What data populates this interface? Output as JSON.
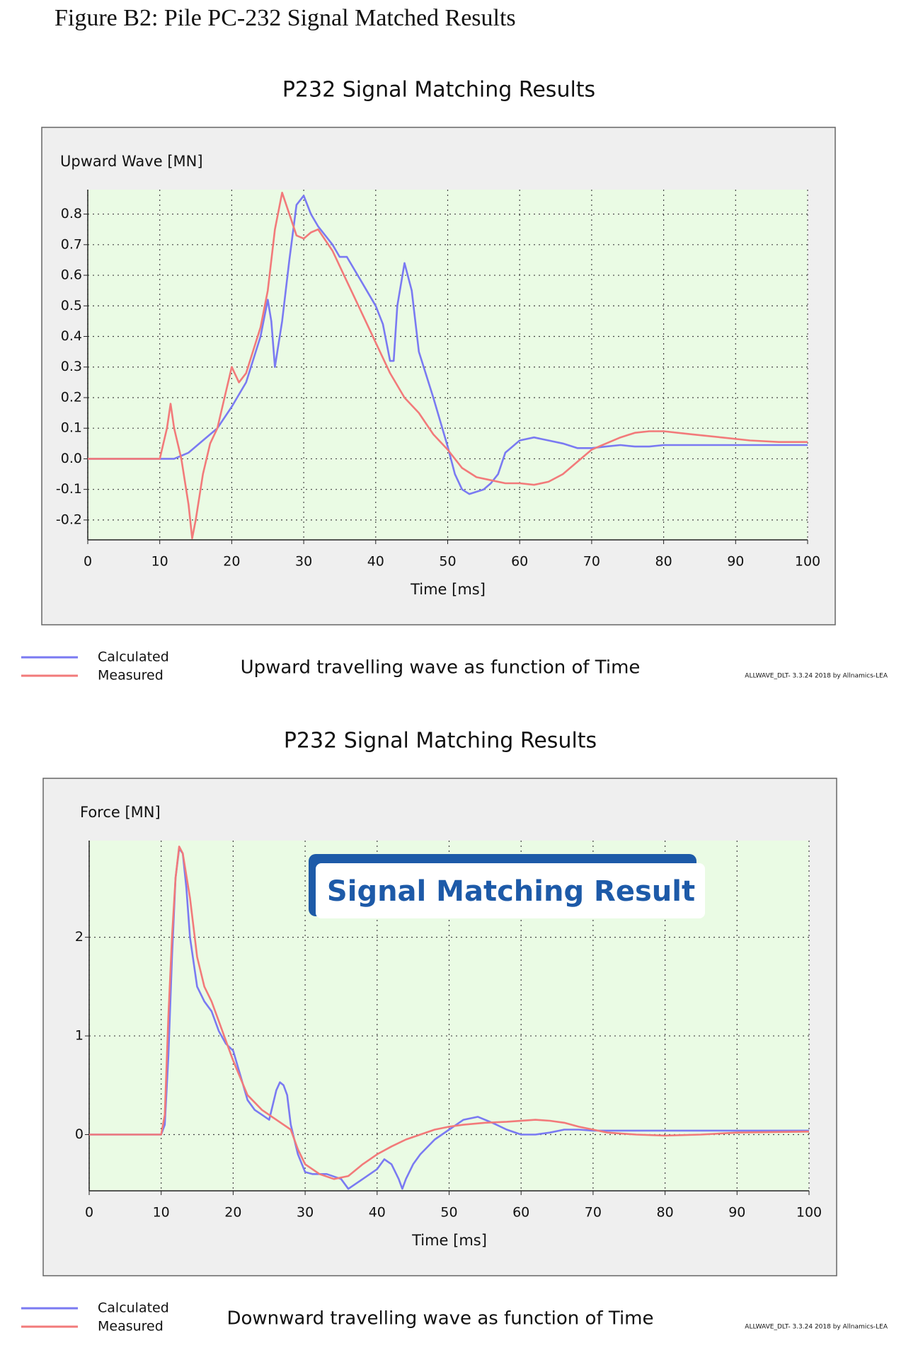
{
  "caption": "Figure B2: Pile PC-232 Signal Matched Results",
  "chart_data": [
    {
      "type": "line",
      "title": "P232 Signal Matching Results",
      "y_label": "Upward Wave [MN]",
      "x_label": "Time [ms]",
      "subtitle": "Upward travelling wave as function of Time",
      "footnote": "ALLWAVE_DLT- 3.3.24  2018 by Allnamics-LEA",
      "xlim": [
        0,
        100
      ],
      "ylim": [
        -0.265,
        0.88
      ],
      "grid": true,
      "xticks": [
        0,
        10,
        20,
        30,
        40,
        50,
        60,
        70,
        80,
        90,
        100
      ],
      "yticks": [
        -0.2,
        -0.1,
        {
          "value": 0,
          "label": "0.0"
        },
        0.1,
        0.2,
        0.3,
        0.4,
        0.5,
        0.6,
        0.7,
        0.8
      ],
      "series": [
        {
          "name": "Calculated",
          "color": "#7a7af2",
          "x": [
            0,
            10,
            12,
            14,
            16,
            18,
            20,
            22,
            24,
            25,
            25.5,
            26,
            27,
            28,
            29,
            30,
            31,
            32,
            34,
            35,
            36,
            38,
            40,
            41,
            42,
            42.5,
            43,
            44,
            45,
            46,
            48,
            50,
            51,
            52,
            53,
            55,
            56,
            57,
            58,
            60,
            62,
            64,
            66,
            68,
            70,
            72,
            74,
            76,
            78,
            80,
            90,
            100
          ],
          "values": [
            0,
            0,
            0,
            0.02,
            0.06,
            0.1,
            0.17,
            0.25,
            0.4,
            0.52,
            0.45,
            0.3,
            0.45,
            0.65,
            0.83,
            0.86,
            0.8,
            0.76,
            0.7,
            0.66,
            0.66,
            0.58,
            0.5,
            0.44,
            0.32,
            0.32,
            0.5,
            0.64,
            0.55,
            0.35,
            0.2,
            0.04,
            -0.05,
            -0.1,
            -0.115,
            -0.1,
            -0.08,
            -0.05,
            0.02,
            0.06,
            0.07,
            0.06,
            0.05,
            0.035,
            0.035,
            0.04,
            0.045,
            0.04,
            0.04,
            0.045,
            0.045,
            0.045
          ]
        },
        {
          "name": "Measured",
          "color": "#f27a7a",
          "x": [
            0,
            10,
            10.5,
            11,
            11.5,
            12,
            13,
            14,
            14.5,
            15,
            16,
            17,
            18,
            19,
            20,
            21,
            22,
            24,
            25,
            26,
            27,
            28,
            29,
            30,
            31,
            32,
            34,
            36,
            38,
            40,
            42,
            44,
            46,
            48,
            50,
            52,
            54,
            56,
            58,
            60,
            62,
            64,
            66,
            68,
            70,
            72,
            74,
            76,
            78,
            80,
            84,
            88,
            92,
            96,
            100
          ],
          "values": [
            0,
            0,
            0.05,
            0.1,
            0.18,
            0.1,
            0,
            -0.15,
            -0.26,
            -0.2,
            -0.05,
            0.05,
            0.1,
            0.2,
            0.3,
            0.25,
            0.28,
            0.43,
            0.55,
            0.75,
            0.87,
            0.8,
            0.73,
            0.72,
            0.74,
            0.75,
            0.68,
            0.58,
            0.48,
            0.38,
            0.28,
            0.2,
            0.15,
            0.08,
            0.03,
            -0.03,
            -0.06,
            -0.07,
            -0.08,
            -0.08,
            -0.085,
            -0.075,
            -0.05,
            -0.01,
            0.03,
            0.05,
            0.07,
            0.085,
            0.09,
            0.09,
            0.08,
            0.07,
            0.06,
            0.055,
            0.055
          ]
        }
      ]
    },
    {
      "type": "line",
      "title": "P232 Signal Matching Results",
      "y_label": "Force [MN]",
      "x_label": "Time [ms]",
      "subtitle": "Downward travelling wave as function of Time",
      "footnote": "ALLWAVE_DLT- 3.3.24  2018 by Allnamics-LEA",
      "annotation": "Signal Matching Result",
      "xlim": [
        0,
        100
      ],
      "ylim": [
        -0.57,
        2.98
      ],
      "grid": true,
      "xticks": [
        0,
        10,
        20,
        30,
        40,
        50,
        60,
        70,
        80,
        90,
        100
      ],
      "yticks": [
        0,
        1,
        2
      ],
      "series": [
        {
          "name": "Calculated",
          "color": "#7a7af2",
          "x": [
            0,
            10,
            10.5,
            11,
            11.5,
            12,
            12.5,
            13,
            13.5,
            14,
            15,
            16,
            17,
            18,
            19,
            20,
            21,
            22,
            23,
            24,
            25,
            26,
            26.5,
            27,
            27.5,
            28,
            29,
            30,
            31,
            33,
            35,
            36,
            38,
            40,
            41,
            42,
            43,
            43.5,
            44,
            45,
            46,
            48,
            50,
            52,
            54,
            56,
            58,
            60,
            62,
            64,
            66,
            68,
            70,
            75,
            80,
            90,
            100
          ],
          "values": [
            0,
            0,
            0.1,
            0.8,
            1.8,
            2.6,
            2.9,
            2.85,
            2.5,
            2.0,
            1.5,
            1.35,
            1.25,
            1.05,
            0.92,
            0.85,
            0.6,
            0.35,
            0.25,
            0.2,
            0.15,
            0.45,
            0.53,
            0.5,
            0.4,
            0.1,
            -0.2,
            -0.38,
            -0.4,
            -0.4,
            -0.45,
            -0.55,
            -0.45,
            -0.35,
            -0.25,
            -0.3,
            -0.45,
            -0.55,
            -0.45,
            -0.3,
            -0.2,
            -0.05,
            0.05,
            0.15,
            0.18,
            0.12,
            0.05,
            0,
            0,
            0.02,
            0.05,
            0.05,
            0.04,
            0.04,
            0.04,
            0.04,
            0.04
          ]
        },
        {
          "name": "Measured",
          "color": "#f27a7a",
          "x": [
            0,
            10,
            10.5,
            11,
            11.5,
            12,
            12.5,
            13,
            14,
            15,
            16,
            17,
            18,
            19,
            20,
            22,
            24,
            26,
            28,
            29,
            30,
            32,
            34,
            36,
            38,
            40,
            42,
            44,
            46,
            48,
            50,
            52,
            55,
            58,
            62,
            64,
            66,
            68,
            70,
            72,
            76,
            80,
            85,
            90,
            100
          ],
          "values": [
            0,
            0,
            0.2,
            1.2,
            2.0,
            2.6,
            2.92,
            2.85,
            2.4,
            1.8,
            1.5,
            1.35,
            1.15,
            0.95,
            0.75,
            0.4,
            0.25,
            0.15,
            0.05,
            -0.15,
            -0.3,
            -0.4,
            -0.45,
            -0.42,
            -0.3,
            -0.2,
            -0.12,
            -0.05,
            0,
            0.05,
            0.08,
            0.1,
            0.12,
            0.13,
            0.15,
            0.14,
            0.12,
            0.08,
            0.05,
            0.02,
            0,
            -0.01,
            0,
            0.02,
            0.03
          ]
        }
      ]
    }
  ]
}
